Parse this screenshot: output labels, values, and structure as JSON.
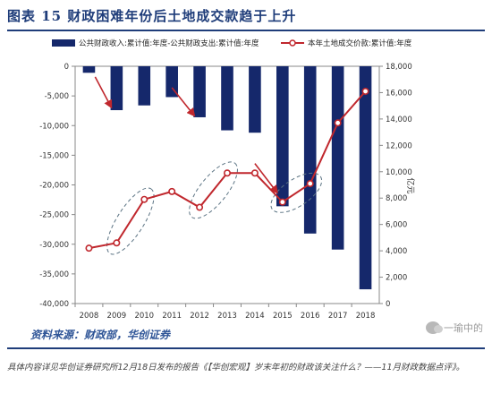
{
  "figure": {
    "title": "图表 15   财政困难年份后土地成交款趋于上升",
    "source": "资料来源：财政部，华创证券",
    "watermark": "一瑜中的",
    "caption": "具体内容详见华创证券研究所12月18日发布的报告《【华创宏观】岁末年初的财政该关注什么？——11月财政数据点评》。"
  },
  "colors": {
    "bar": "#15286b",
    "line": "#c0272d",
    "marker_fill": "#ffffff",
    "arrow": "#c0272d",
    "ellipse": "#5b7383",
    "title": "#1f3d7a",
    "source": "#2f5597"
  },
  "chart_data": {
    "type": "bar",
    "categories": [
      "2008",
      "2009",
      "2010",
      "2011",
      "2012",
      "2013",
      "2014",
      "2015",
      "2016",
      "2017",
      "2018"
    ],
    "series": [
      {
        "name": "公共财政收入:累计值:年度-公共财政支出:累计值:年度",
        "type": "bar",
        "axis": "left",
        "values": [
          -1100,
          -7400,
          -6600,
          -5200,
          -8600,
          -10800,
          -11200,
          -23600,
          -28200,
          -30900,
          -37600
        ]
      },
      {
        "name": "本年土地成交价款:累计值:年度",
        "type": "line",
        "axis": "right",
        "values": [
          4200,
          4600,
          7900,
          8500,
          7300,
          9900,
          9900,
          7700,
          9100,
          13700,
          16100
        ]
      }
    ],
    "y_left": {
      "min": -40000,
      "max": 0,
      "ticks": [
        0,
        -5000,
        -10000,
        -15000,
        -20000,
        -25000,
        -30000,
        -35000,
        -40000
      ],
      "tick_labels": [
        "0",
        "-5,000",
        "-10,000",
        "-15,000",
        "-20,000",
        "-25,000",
        "-30,000",
        "-35,000",
        "-40,000"
      ]
    },
    "y_right": {
      "min": 0,
      "max": 18000,
      "unit": "亿元",
      "ticks": [
        0,
        2000,
        4000,
        6000,
        8000,
        10000,
        12000,
        14000,
        16000,
        18000
      ],
      "tick_labels": [
        "0",
        "2,000",
        "4,000",
        "6,000",
        "8,000",
        "10,000",
        "12,000",
        "14,000",
        "16,000",
        "18,000"
      ]
    },
    "legend_position": "top",
    "grid": false,
    "annotations": {
      "arrows": [
        {
          "from_category": "2009",
          "from_value": -1800,
          "to_category": "2009",
          "to_value": -6900
        },
        {
          "from_category": "2011",
          "from_value": -3600,
          "to_category": "2012",
          "to_value": -8300
        },
        {
          "from_category": "2014",
          "from_value": -16400,
          "to_category": "2015",
          "to_value": -21300
        }
      ],
      "highlight_ellipses": [
        {
          "categories": [
            "2009",
            "2010"
          ]
        },
        {
          "categories": [
            "2012",
            "2013"
          ]
        },
        {
          "categories": [
            "2015",
            "2016"
          ]
        }
      ]
    }
  }
}
